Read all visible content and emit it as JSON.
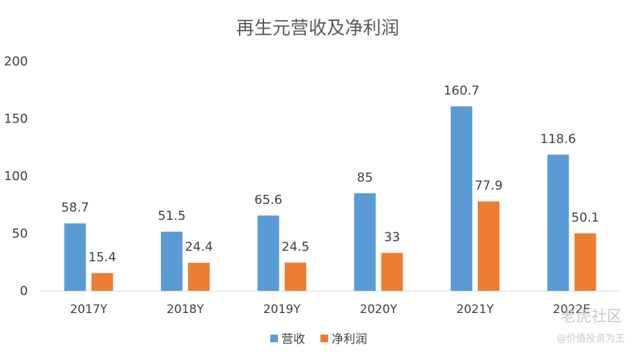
{
  "chart_data": {
    "type": "bar",
    "title": "再生元营收及净利润",
    "categories": [
      "2017Y",
      "2018Y",
      "2019Y",
      "2020Y",
      "2021Y",
      "2022E"
    ],
    "series": [
      {
        "name": "营收",
        "values": [
          58.7,
          51.5,
          65.6,
          85,
          160.7,
          118.6
        ],
        "color": "#5B9BD5"
      },
      {
        "name": "净利润",
        "values": [
          15.4,
          24.4,
          24.5,
          33,
          77.9,
          50.1
        ],
        "color": "#ED7D31"
      }
    ],
    "yticks": [
      0,
      50,
      100,
      150,
      200
    ],
    "ylim": [
      0,
      200
    ],
    "grid": false,
    "legend_position": "bottom"
  },
  "watermark": {
    "brand": "老虎社区",
    "handle": "@价值投资为王"
  }
}
